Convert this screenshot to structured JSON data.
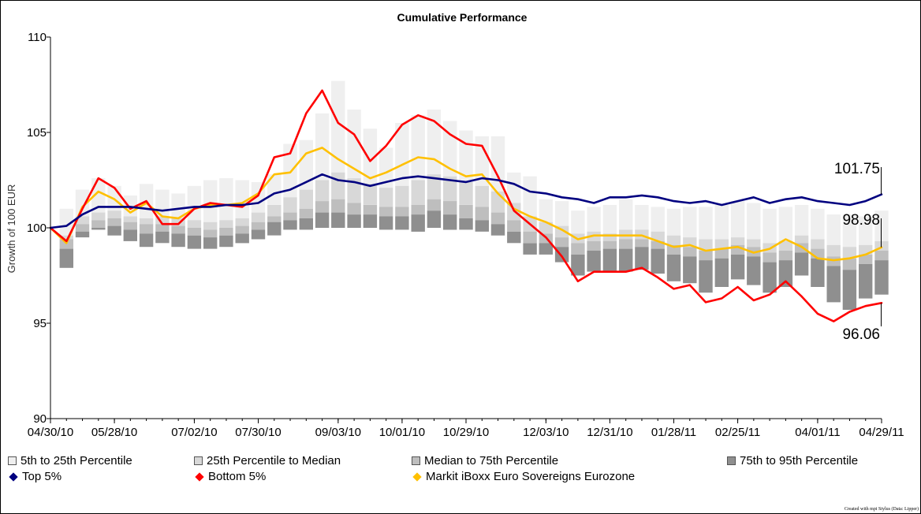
{
  "chart_data": {
    "type": "area",
    "title": "Cumulative Performance",
    "ylabel": "Growth of 100 EUR",
    "xlabel": "",
    "ylim": [
      90,
      110
    ],
    "yticks": [
      90,
      95,
      100,
      105,
      110
    ],
    "xtick_labels": [
      "04/30/10",
      "05/28/10",
      "07/02/10",
      "07/30/10",
      "09/03/10",
      "10/01/10",
      "10/29/10",
      "12/03/10",
      "12/31/10",
      "01/28/11",
      "02/25/11",
      "04/01/11",
      "04/29/11"
    ],
    "xtick_index": [
      0,
      4,
      9,
      13,
      18,
      22,
      26,
      31,
      35,
      39,
      43,
      48,
      52
    ],
    "percentile_bands": {
      "p5": [
        100,
        97.9,
        99.5,
        99.9,
        99.6,
        99.3,
        99.0,
        99.2,
        99.0,
        98.9,
        98.9,
        99.0,
        99.2,
        99.4,
        99.6,
        99.9,
        99.9,
        100.0,
        100.0,
        100.0,
        100.0,
        99.9,
        99.9,
        99.8,
        100.0,
        99.9,
        99.9,
        99.8,
        99.6,
        99.2,
        98.6,
        98.6,
        98.2,
        97.5,
        97.7,
        97.7,
        97.7,
        97.8,
        97.6,
        97.2,
        97.1,
        96.6,
        96.9,
        97.3,
        97.0,
        96.6,
        96.9,
        97.5,
        96.9,
        96.1,
        95.7,
        96.3,
        96.5
      ],
      "p25": [
        100,
        98.9,
        99.8,
        100.0,
        100.1,
        99.9,
        99.7,
        99.8,
        99.7,
        99.6,
        99.5,
        99.6,
        99.7,
        99.9,
        100.3,
        100.4,
        100.5,
        100.8,
        100.8,
        100.7,
        100.7,
        100.6,
        100.6,
        100.7,
        100.9,
        100.7,
        100.5,
        100.4,
        100.2,
        99.8,
        99.2,
        99.2,
        99.0,
        98.6,
        98.8,
        98.9,
        98.9,
        99.0,
        98.9,
        98.6,
        98.5,
        98.3,
        98.4,
        98.6,
        98.5,
        98.2,
        98.3,
        98.7,
        98.4,
        98.0,
        97.8,
        98.1,
        98.3
      ],
      "p50": [
        100,
        99.4,
        100.2,
        100.4,
        100.5,
        100.3,
        100.2,
        100.2,
        100.1,
        100.0,
        99.9,
        100.0,
        100.1,
        100.3,
        100.6,
        100.8,
        101.0,
        101.4,
        101.5,
        101.3,
        101.2,
        101.1,
        101.1,
        101.2,
        101.5,
        101.4,
        101.2,
        101.1,
        100.8,
        100.4,
        99.8,
        99.7,
        99.5,
        99.2,
        99.3,
        99.3,
        99.4,
        99.4,
        99.3,
        99.1,
        99.0,
        98.8,
        98.9,
        99.1,
        99.0,
        98.7,
        98.8,
        99.2,
        98.9,
        98.5,
        98.4,
        98.6,
        98.8
      ],
      "p75": [
        100,
        99.6,
        100.6,
        100.8,
        100.9,
        100.6,
        100.5,
        100.6,
        100.5,
        100.4,
        100.3,
        100.4,
        100.5,
        100.8,
        101.2,
        101.6,
        102.0,
        102.5,
        102.9,
        102.6,
        102.3,
        102.1,
        102.2,
        102.5,
        102.8,
        102.7,
        102.4,
        102.2,
        101.9,
        101.3,
        100.6,
        100.3,
        100.1,
        99.7,
        99.8,
        99.7,
        99.9,
        99.9,
        99.8,
        99.6,
        99.5,
        99.4,
        99.4,
        99.5,
        99.4,
        99.2,
        99.3,
        99.6,
        99.4,
        99.1,
        99.0,
        99.1,
        99.3
      ],
      "p95": [
        100,
        101.0,
        102.0,
        102.6,
        102.2,
        101.7,
        102.3,
        102.0,
        101.8,
        102.2,
        102.5,
        102.6,
        102.5,
        102.4,
        102.8,
        104.4,
        104.6,
        106.0,
        107.7,
        106.2,
        105.2,
        104.2,
        105.5,
        105.9,
        106.2,
        105.6,
        105.1,
        104.8,
        104.8,
        102.9,
        102.7,
        101.5,
        101.4,
        100.9,
        101.1,
        101.2,
        101.5,
        101.2,
        101.1,
        101.0,
        101.1,
        101.1,
        101.2,
        101.4,
        101.3,
        101.0,
        101.1,
        101.2,
        101.0,
        100.7,
        100.7,
        100.6,
        100.9
      ]
    },
    "series": [
      {
        "name": "Top 5%",
        "color": "#000080",
        "values": [
          100,
          100.1,
          100.7,
          101.1,
          101.1,
          101.1,
          101.0,
          100.9,
          101.0,
          101.1,
          101.1,
          101.2,
          101.2,
          101.3,
          101.8,
          102.0,
          102.4,
          102.8,
          102.5,
          102.4,
          102.2,
          102.4,
          102.6,
          102.7,
          102.6,
          102.5,
          102.4,
          102.6,
          102.5,
          102.3,
          101.9,
          101.8,
          101.6,
          101.5,
          101.3,
          101.6,
          101.6,
          101.7,
          101.6,
          101.4,
          101.3,
          101.4,
          101.2,
          101.4,
          101.6,
          101.3,
          101.5,
          101.6,
          101.4,
          101.3,
          101.2,
          101.4,
          101.75
        ],
        "end_label": "101.75"
      },
      {
        "name": "Bottom 5%",
        "color": "#ff0000",
        "values": [
          100,
          99.3,
          101.0,
          102.6,
          102.1,
          101.0,
          101.4,
          100.2,
          100.2,
          101.0,
          101.3,
          101.2,
          101.1,
          101.7,
          103.7,
          103.9,
          106.0,
          107.2,
          105.5,
          104.9,
          103.5,
          104.3,
          105.4,
          105.9,
          105.6,
          104.9,
          104.4,
          104.3,
          102.7,
          100.9,
          100.2,
          99.5,
          98.5,
          97.2,
          97.7,
          97.7,
          97.7,
          97.9,
          97.4,
          96.8,
          97.0,
          96.1,
          96.3,
          96.9,
          96.2,
          96.5,
          97.2,
          96.4,
          95.5,
          95.1,
          95.6,
          95.9,
          96.06
        ],
        "end_label": "96.06"
      },
      {
        "name": "Markit iBoxx Euro Sovereigns Eurozone",
        "color": "#ffc000",
        "values": [
          100,
          99.2,
          101.1,
          101.9,
          101.5,
          100.8,
          101.3,
          100.6,
          100.5,
          101.0,
          101.2,
          101.2,
          101.3,
          101.8,
          102.8,
          102.9,
          103.9,
          104.2,
          103.6,
          103.1,
          102.6,
          102.9,
          103.3,
          103.7,
          103.6,
          103.1,
          102.7,
          102.8,
          101.8,
          101.0,
          100.6,
          100.3,
          99.9,
          99.4,
          99.6,
          99.6,
          99.6,
          99.6,
          99.3,
          99.0,
          99.1,
          98.8,
          98.9,
          99.0,
          98.7,
          98.9,
          99.4,
          99.0,
          98.4,
          98.3,
          98.4,
          98.6,
          98.98
        ],
        "end_label": "98.98"
      }
    ],
    "legend": [
      {
        "label": "5th to 25th Percentile",
        "kind": "box",
        "color": "#efefef"
      },
      {
        "label": "25th Percentile to Median",
        "kind": "box",
        "color": "#d8d8d8"
      },
      {
        "label": "Median to 75th Percentile",
        "kind": "box",
        "color": "#bebebe"
      },
      {
        "label": "75th to 95th Percentile",
        "kind": "box",
        "color": "#8f8f8f"
      },
      {
        "label": "Top 5%",
        "kind": "diamond",
        "color": "#000080"
      },
      {
        "label": "Bottom 5%",
        "kind": "diamond",
        "color": "#ff0000"
      },
      {
        "label": "Markit iBoxx Euro Sovereigns Eurozone",
        "kind": "diamond",
        "color": "#ffc000"
      }
    ],
    "legend_placement": "bottom",
    "grid": false
  },
  "footer": {
    "credit": "Created with mpi Stylus (Data: Lipper)"
  }
}
